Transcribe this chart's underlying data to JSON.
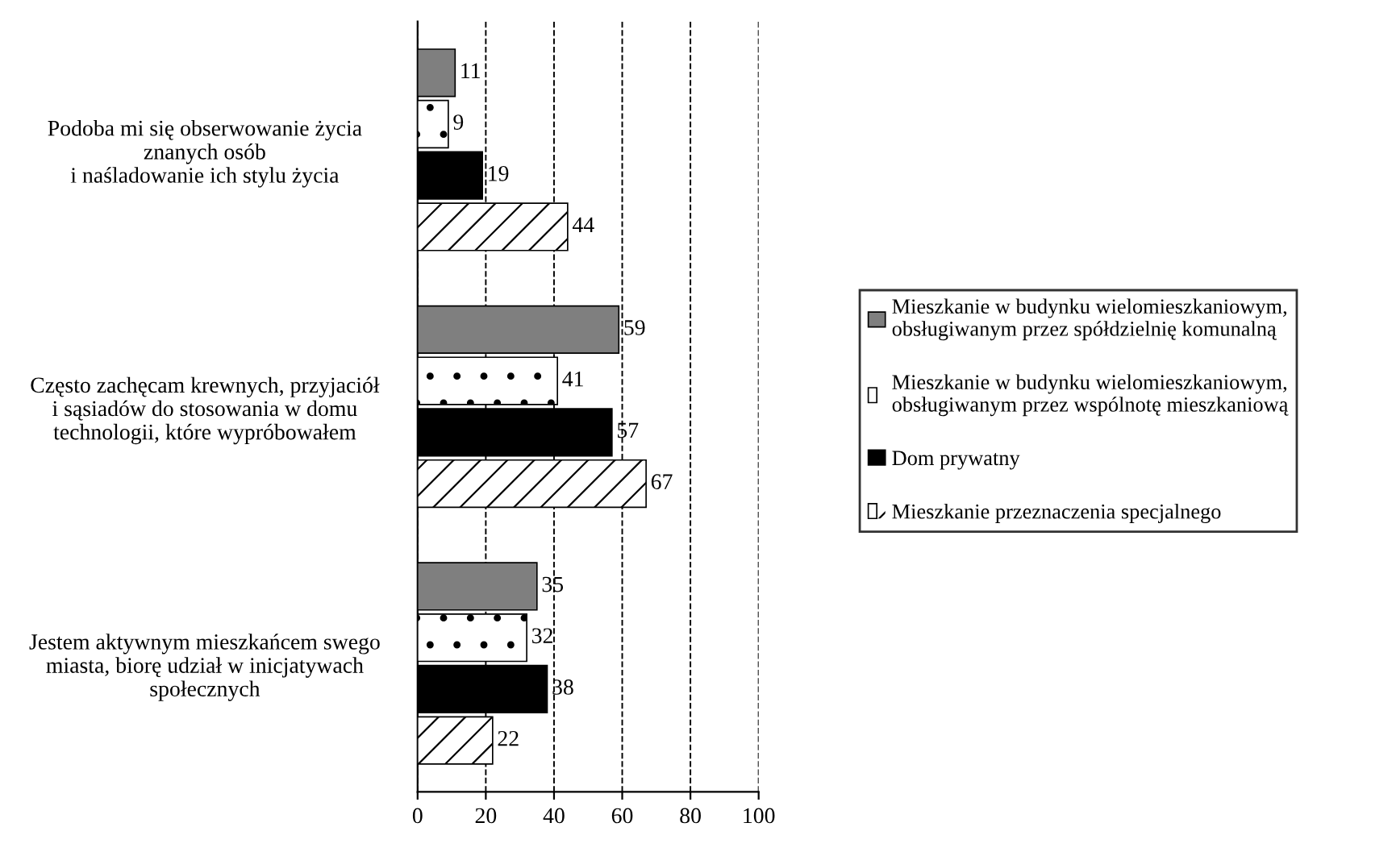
{
  "chart_data": {
    "type": "bar",
    "orientation": "horizontal",
    "categories": [
      "Podoba mi się obserwowanie życia\nznanych osób\ni naśladowanie ich stylu życia",
      "Często zachęcam krewnych, przyjaciół\ni sąsiadów do stosowania w domu\ntechnologii, które wypróbowałem",
      "Jestem aktywnym mieszkańcem swego\nmiasta, biorę udział w inicjatywach\nspołecznych"
    ],
    "series": [
      {
        "name": "Mieszkanie w budynku wielomieszkaniowym,\nobsługiwanym przez spółdzielnię komunalną",
        "color": "#7f7f7f",
        "values": [
          11,
          59,
          35
        ]
      },
      {
        "name": "Mieszkanie w budynku wielomieszkaniowym,\nobsługiwanym przez wspólnotę mieszkaniową",
        "color": "#ffffff",
        "values": [
          9,
          41,
          32
        ]
      },
      {
        "name": "Dom prywatny",
        "color": "#000000",
        "values": [
          19,
          57,
          38
        ]
      },
      {
        "name": "Mieszkanie przeznaczenia specjalnego",
        "color": "#ffffff",
        "values": [
          44,
          67,
          22
        ]
      }
    ],
    "xlim": [
      0,
      100
    ],
    "xticks": [
      0,
      20,
      40,
      60,
      80,
      100
    ],
    "grid": "x",
    "data_labels": true,
    "legend": "right"
  }
}
